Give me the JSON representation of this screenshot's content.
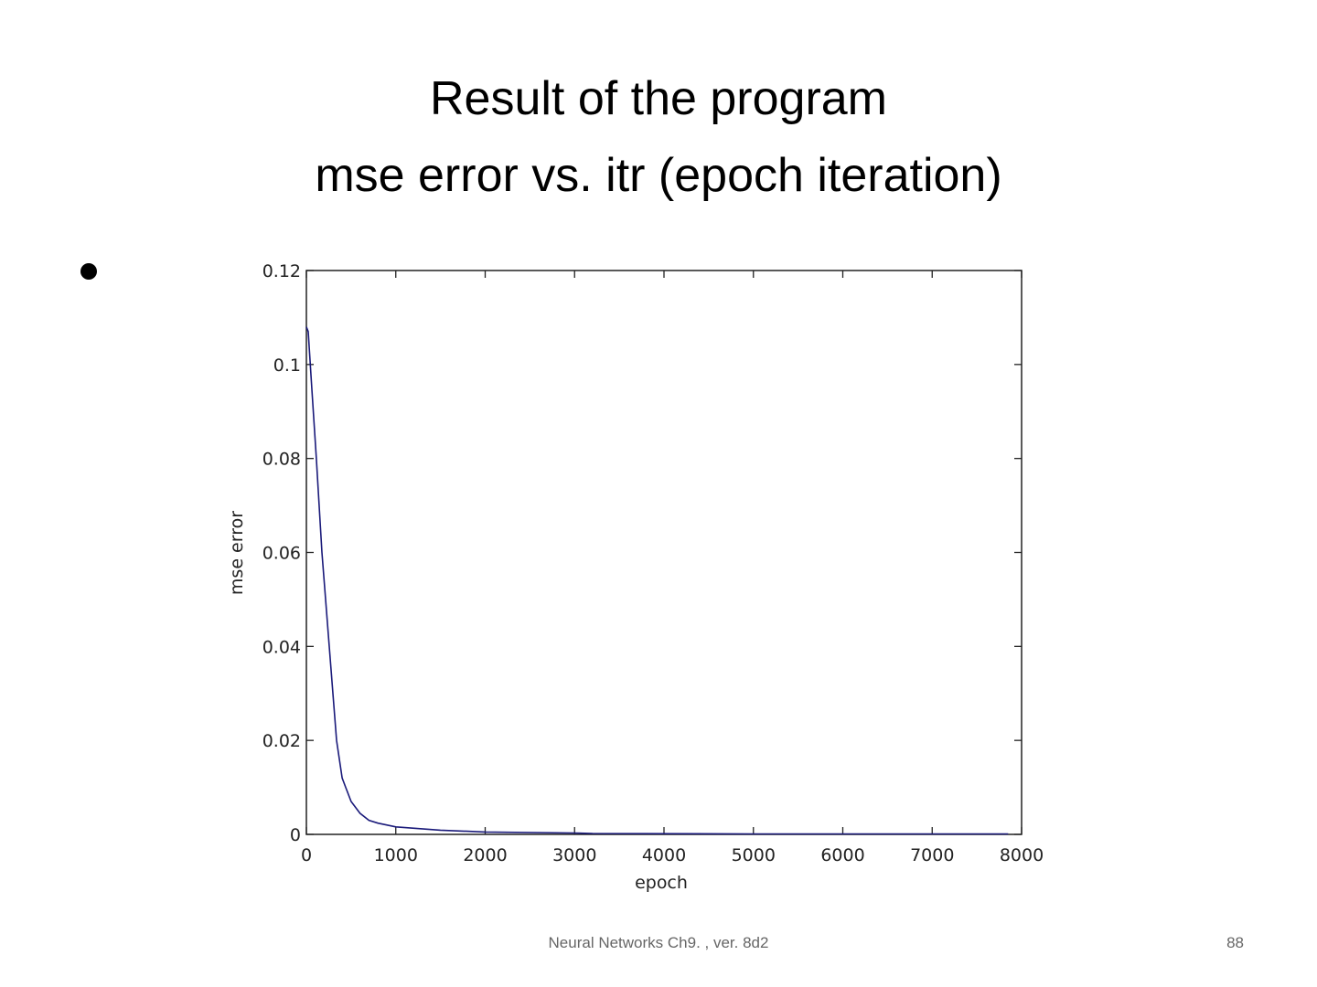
{
  "slide": {
    "title_line1": "Result of the program",
    "title_line2": "mse error vs. itr (epoch iteration)",
    "footer": "Neural Networks Ch9. , ver. 8d2",
    "page_number": "88"
  },
  "chart_data": {
    "type": "line",
    "title": "",
    "xlabel": "epoch",
    "ylabel": "mse error",
    "xlim": [
      0,
      8000
    ],
    "ylim": [
      0,
      0.12
    ],
    "xticks": [
      "0",
      "1000",
      "2000",
      "3000",
      "4000",
      "5000",
      "6000",
      "7000",
      "8000"
    ],
    "yticks": [
      "0",
      "0.02",
      "0.04",
      "0.06",
      "0.08",
      "0.1",
      "0.12"
    ],
    "grid": false,
    "series": [
      {
        "name": "mse",
        "color": "#1a1a7a",
        "x": [
          0,
          20,
          60,
          112,
          174,
          256,
          338,
          400,
          440,
          500,
          600,
          700,
          800,
          1000,
          1500,
          2000,
          3000,
          3200,
          5000,
          7850
        ],
        "y": [
          0.108,
          0.107,
          0.095,
          0.08,
          0.06,
          0.04,
          0.02,
          0.012,
          0.01,
          0.007,
          0.0045,
          0.003,
          0.0024,
          0.0016,
          0.0009,
          0.0005,
          0.0003,
          0.0002,
          0.0001,
          0.0001
        ]
      }
    ]
  }
}
